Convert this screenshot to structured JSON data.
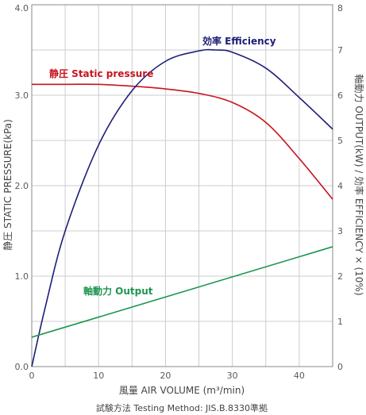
{
  "chart_data": {
    "type": "line",
    "x_axis": {
      "label": "風量 AIR VOLUME (m³/min)",
      "range": [
        0,
        45
      ],
      "ticks": [
        0,
        10,
        20,
        30,
        40
      ]
    },
    "y_left": {
      "label": "静圧 STATIC PRESSURE(kPa)",
      "range": [
        0,
        4
      ],
      "ticks": [
        0,
        1,
        2,
        3,
        4
      ],
      "tick_labels": [
        "0.0",
        "1.0",
        "2.0",
        "3.0",
        "4.0"
      ]
    },
    "y_right": {
      "label": "軸動力 OUTPUT(kW) / 効率 EFFICIENCY × (10%)",
      "range": [
        0,
        8
      ],
      "ticks": [
        0,
        1,
        2,
        3,
        4,
        5,
        6,
        7,
        8
      ],
      "tick_labels": [
        "0",
        "1",
        "2",
        "3",
        "4",
        "5",
        "6",
        "7",
        "8"
      ]
    },
    "grid": true,
    "footnote": "試験方法 Testing Method: JIS.B.8330準拠",
    "series": [
      {
        "name": "静圧 Static pressure",
        "axis": "left",
        "color": "#c8141e",
        "points": [
          [
            0,
            3.12
          ],
          [
            5,
            3.12
          ],
          [
            10,
            3.12
          ],
          [
            15,
            3.1
          ],
          [
            20,
            3.07
          ],
          [
            25,
            3.02
          ],
          [
            30,
            2.92
          ],
          [
            35,
            2.7
          ],
          [
            40,
            2.3
          ],
          [
            45,
            1.85
          ]
        ]
      },
      {
        "name": "効率 Efficiency",
        "axis": "right",
        "color": "#1e1e78",
        "points": [
          [
            0,
            0
          ],
          [
            2,
            1.3
          ],
          [
            5,
            3.0
          ],
          [
            10,
            4.9
          ],
          [
            15,
            6.1
          ],
          [
            20,
            6.75
          ],
          [
            25,
            6.98
          ],
          [
            27.5,
            7.0
          ],
          [
            30,
            6.95
          ],
          [
            35,
            6.6
          ],
          [
            40,
            5.95
          ],
          [
            45,
            5.25
          ]
        ]
      },
      {
        "name": "軸動力 Output",
        "axis": "right",
        "color": "#1e9650",
        "points": [
          [
            0,
            0.65
          ],
          [
            45,
            2.65
          ]
        ]
      }
    ]
  }
}
